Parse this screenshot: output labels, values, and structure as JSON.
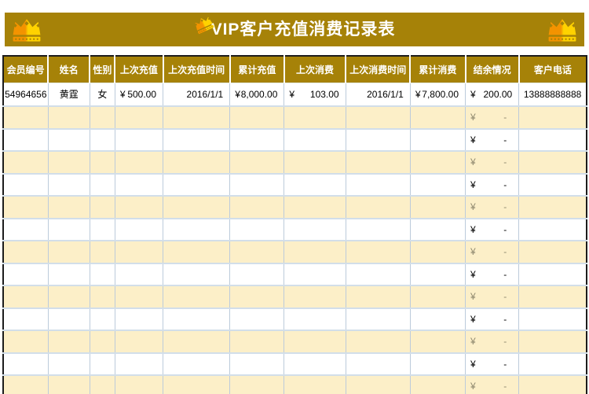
{
  "title_bar": {
    "title": "VIP客户充值消费记录表",
    "left_icon": "crown-icon",
    "title_icon": "crown-icon",
    "right_icon": "crown-icon"
  },
  "colors": {
    "gold": "#a68208",
    "cream_row": "#fcefc8",
    "row_border": "#d2dee9",
    "cell_border": "#bccbdb",
    "outer_border": "#1c1c1c",
    "muted_balance_text": "#8f896f",
    "crown_orange": "#f39300",
    "crown_yellow": "#ffd200",
    "header_text": "#ffffff"
  },
  "table": {
    "currency": "¥",
    "columns": [
      {
        "label": "会员编号",
        "format": "center"
      },
      {
        "label": "姓名",
        "format": "center"
      },
      {
        "label": "性别",
        "format": "center"
      },
      {
        "label": "上次充值",
        "format": "money"
      },
      {
        "label": "上次充值时间",
        "format": "date"
      },
      {
        "label": "累计充值",
        "format": "money"
      },
      {
        "label": "上次消费",
        "format": "money"
      },
      {
        "label": "上次消费时间",
        "format": "date"
      },
      {
        "label": "累计消费",
        "format": "money"
      },
      {
        "label": "结余情况",
        "format": "money"
      },
      {
        "label": "客户电话",
        "format": "center"
      }
    ],
    "first_row": [
      "54964656",
      "黄霆",
      "女",
      "500.00",
      "2016/1/1",
      "8,000.00",
      "103.00",
      "2016/1/1",
      "7,800.00",
      "200.00",
      "13888888888"
    ],
    "empty_rows": {
      "count": 13,
      "balance_column_index": 9,
      "balance_value": "-"
    }
  }
}
